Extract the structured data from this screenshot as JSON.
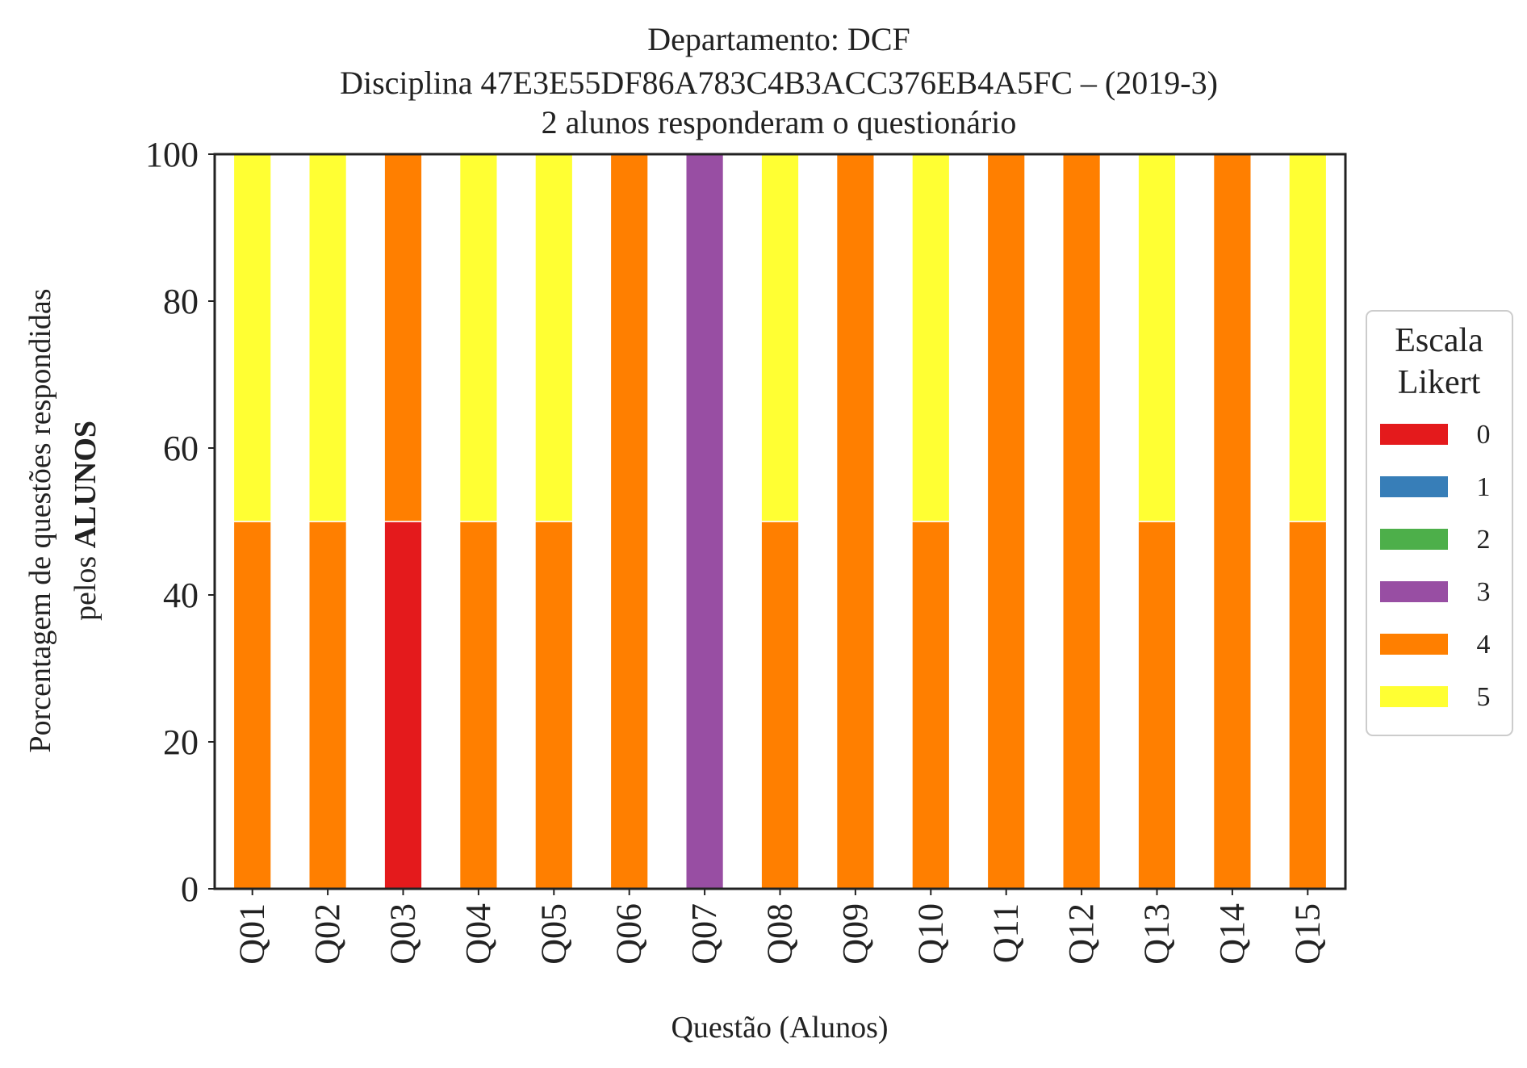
{
  "chart_data": {
    "type": "bar",
    "stacked": true,
    "title_lines": [
      "Departamento: DCF",
      "Disciplina 47E3E55DF86A783C4B3ACC376EB4A5FC – (2019-3)",
      "2 alunos responderam o questionário"
    ],
    "xlabel": "Questão (Alunos)",
    "ylabel_line1": "Porcentagem de questões respondidas",
    "ylabel_line2_prefix": "pelos ",
    "ylabel_line2_bold": "ALUNOS",
    "ylim": [
      0,
      100
    ],
    "yticks": [
      "0",
      "20",
      "40",
      "60",
      "80",
      "100"
    ],
    "grid": false,
    "legend": {
      "title_lines": [
        "Escala",
        "Likert"
      ],
      "placement": "right"
    },
    "categories": [
      "Q01",
      "Q02",
      "Q03",
      "Q04",
      "Q05",
      "Q06",
      "Q07",
      "Q08",
      "Q09",
      "Q10",
      "Q11",
      "Q12",
      "Q13",
      "Q14",
      "Q15"
    ],
    "series": [
      {
        "name": "0",
        "color": "#e41a1c",
        "values": [
          0,
          0,
          50,
          0,
          0,
          0,
          0,
          0,
          0,
          0,
          0,
          0,
          0,
          0,
          0
        ]
      },
      {
        "name": "1",
        "color": "#377eb8",
        "values": [
          0,
          0,
          0,
          0,
          0,
          0,
          0,
          0,
          0,
          0,
          0,
          0,
          0,
          0,
          0
        ]
      },
      {
        "name": "2",
        "color": "#4daf4a",
        "values": [
          0,
          0,
          0,
          0,
          0,
          0,
          0,
          0,
          0,
          0,
          0,
          0,
          0,
          0,
          0
        ]
      },
      {
        "name": "3",
        "color": "#984ea3",
        "values": [
          0,
          0,
          0,
          0,
          0,
          0,
          100,
          0,
          0,
          0,
          0,
          0,
          0,
          0,
          0
        ]
      },
      {
        "name": "4",
        "color": "#ff7f00",
        "values": [
          50,
          50,
          50,
          50,
          50,
          100,
          0,
          50,
          100,
          50,
          100,
          100,
          50,
          100,
          50
        ]
      },
      {
        "name": "5",
        "color": "#ffff33",
        "values": [
          50,
          50,
          0,
          50,
          50,
          0,
          0,
          50,
          0,
          50,
          0,
          0,
          50,
          0,
          50
        ]
      }
    ]
  }
}
